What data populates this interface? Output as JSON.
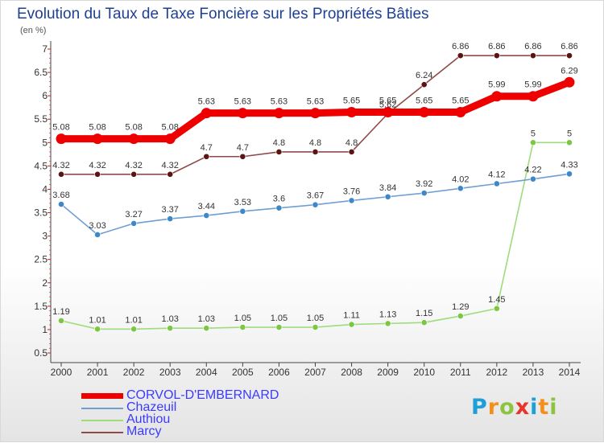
{
  "title": "Evolution du Taux de Taxe Foncière sur les Propriétés Bâties",
  "unit_label": "(en %)",
  "logo": {
    "text": "Proxiti",
    "letter_colors": [
      "#1e9fd8",
      "#f3901c",
      "#8bc43f",
      "#e6352b",
      "#1e9fd8",
      "#f3901c",
      "#8bc43f"
    ]
  },
  "chart_data": {
    "type": "line",
    "x": [
      "2000",
      "2001",
      "2002",
      "2003",
      "2004",
      "2005",
      "2006",
      "2007",
      "2008",
      "2009",
      "2010",
      "2011",
      "2012",
      "2013",
      "2014"
    ],
    "y_ticks": [
      "0.5",
      "1",
      "1.5",
      "2",
      "2.5",
      "3",
      "3.5",
      "4",
      "4.5",
      "5",
      "5.5",
      "6",
      "6.5",
      "7"
    ],
    "ylim": [
      0.5,
      7
    ],
    "series": [
      {
        "name": "CORVOL-D'EMBERNARD",
        "color": "#ee0000",
        "text_color": "#3b3bff",
        "emphasis": "thick",
        "values": [
          5.08,
          5.08,
          5.08,
          5.08,
          5.63,
          5.63,
          5.63,
          5.63,
          5.65,
          5.65,
          5.65,
          5.65,
          5.99,
          5.99,
          6.29
        ],
        "labels": [
          "5.08",
          "5.08",
          "5.08",
          "5.08",
          "5.63",
          "5.63",
          "5.63",
          "5.63",
          "5.65",
          "5.65",
          "5.65",
          "5.65",
          "5.99",
          "5.99",
          "6.29"
        ]
      },
      {
        "name": "Chazeuil",
        "color": "#6e9fd2",
        "marker_color": "#3e88c8",
        "text_color": "#3b3bff",
        "values": [
          3.68,
          3.03,
          3.27,
          3.37,
          3.44,
          3.53,
          3.6,
          3.67,
          3.76,
          3.84,
          3.92,
          4.02,
          4.12,
          4.22,
          4.33
        ],
        "labels": [
          "3.68",
          "3.03",
          "3.27",
          "3.37",
          "3.44",
          "3.53",
          "3.6",
          "3.67",
          "3.76",
          "3.84",
          "3.92",
          "4.02",
          "4.12",
          "4.22",
          "4.33"
        ]
      },
      {
        "name": "Authiou",
        "color": "#9fdc7c",
        "marker_color": "#7bc744",
        "text_color": "#3b3bff",
        "values": [
          1.19,
          1.01,
          1.01,
          1.03,
          1.03,
          1.05,
          1.05,
          1.05,
          1.11,
          1.13,
          1.15,
          1.29,
          1.45,
          5,
          5
        ],
        "labels": [
          "1.19",
          "1.01",
          "1.01",
          "1.03",
          "1.03",
          "1.05",
          "1.05",
          "1.05",
          "1.11",
          "1.13",
          "1.15",
          "1.29",
          "1.45",
          "5",
          "5"
        ]
      },
      {
        "name": "Marcy",
        "color": "#8f4a4a",
        "marker_color": "#5a1414",
        "text_color": "#3b3bff",
        "values": [
          4.32,
          4.32,
          4.32,
          4.32,
          4.7,
          4.7,
          4.8,
          4.8,
          4.8,
          5.62,
          6.24,
          6.86,
          6.86,
          6.86,
          6.86
        ],
        "labels": [
          "4.32",
          "4.32",
          "4.32",
          "4.32",
          "4.7",
          "4.7",
          "4.8",
          "4.8",
          "4.8",
          "5.62",
          "6.24",
          "6.86",
          "6.86",
          "6.86",
          "6.86"
        ]
      }
    ],
    "grid": false,
    "legend_position": "bottom-left"
  }
}
